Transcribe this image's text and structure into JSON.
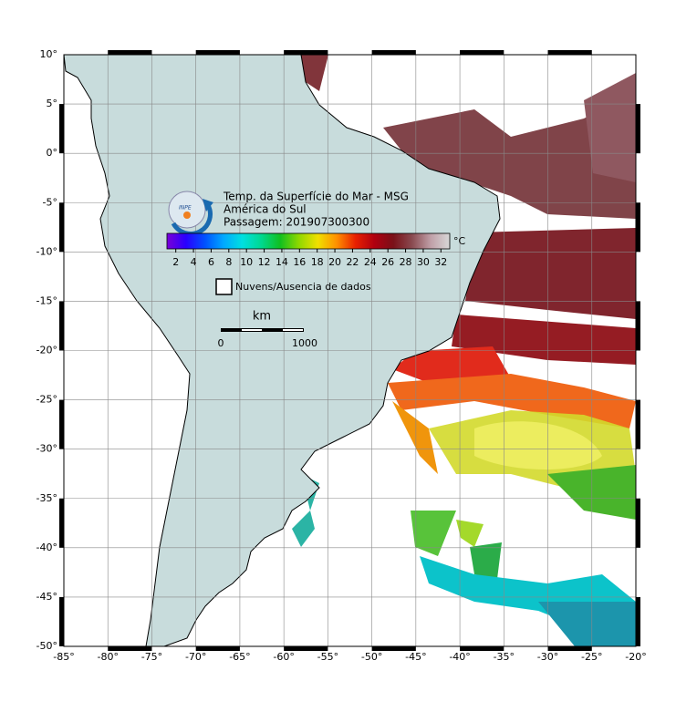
{
  "header": {
    "lines": [
      "Temp. da Superfície do Mar - MSG",
      "América do Sul",
      "Passagem: 201907300300"
    ]
  },
  "logo": {
    "text": "INPE"
  },
  "colorbar": {
    "range": [
      1,
      33
    ],
    "ticks": [
      2,
      4,
      6,
      8,
      10,
      12,
      14,
      16,
      18,
      20,
      22,
      24,
      26,
      28,
      30,
      32
    ],
    "unit": "°C",
    "colors": [
      "#7a00d8",
      "#2a00ff",
      "#0050ff",
      "#00a8ff",
      "#00e0e0",
      "#00d890",
      "#10c020",
      "#90d800",
      "#f0e000",
      "#ff9000",
      "#e82000",
      "#b00010",
      "#7a1018",
      "#8a4a50",
      "#c0a0a8",
      "#d8d8d8"
    ]
  },
  "legend": {
    "label": "Nuvens/Ausencia de dados"
  },
  "scale": {
    "unit": "km",
    "labels": [
      0,
      1000
    ]
  },
  "map": {
    "lonlim": [
      -85,
      -20
    ],
    "latlim": [
      -50,
      10
    ],
    "lonticks": [
      {
        "value": -85,
        "label": "-85°"
      },
      {
        "value": -80,
        "label": "-80°"
      },
      {
        "value": -75,
        "label": "-75°"
      },
      {
        "value": -70,
        "label": "-70°"
      },
      {
        "value": -65,
        "label": "-65°"
      },
      {
        "value": -60,
        "label": "-60°"
      },
      {
        "value": -55,
        "label": "-55°"
      },
      {
        "value": -50,
        "label": "-50°"
      },
      {
        "value": -45,
        "label": "-45°"
      },
      {
        "value": -40,
        "label": "-40°"
      },
      {
        "value": -35,
        "label": "-35°"
      },
      {
        "value": -30,
        "label": "-30°"
      },
      {
        "value": -25,
        "label": "-25°"
      },
      {
        "value": -20,
        "label": "-20°"
      }
    ],
    "latticks": [
      {
        "value": 10,
        "label": "10°"
      },
      {
        "value": 5,
        "label": "5°"
      },
      {
        "value": 0,
        "label": "0°"
      },
      {
        "value": -5,
        "label": "-5°"
      },
      {
        "value": -10,
        "label": "-10°"
      },
      {
        "value": -15,
        "label": "-15°"
      },
      {
        "value": -20,
        "label": "-20°"
      },
      {
        "value": -25,
        "label": "-25°"
      },
      {
        "value": -30,
        "label": "-30°"
      },
      {
        "value": -35,
        "label": "-35°"
      },
      {
        "value": -40,
        "label": "-40°"
      },
      {
        "value": -45,
        "label": "-45°"
      },
      {
        "value": -50,
        "label": "-50°"
      }
    ]
  }
}
